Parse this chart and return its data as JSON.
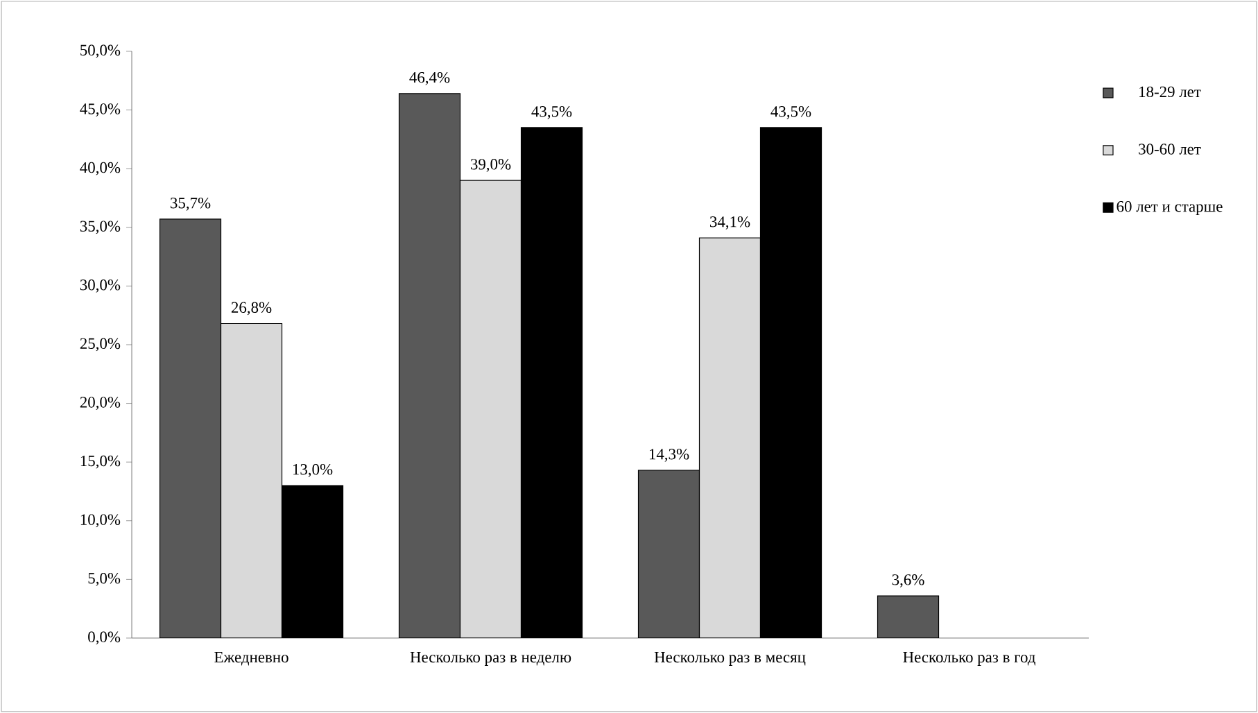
{
  "chart_data": {
    "type": "bar",
    "categories": [
      "Ежедневно",
      "Несколько раз в неделю",
      "Несколько раз в месяц",
      "Несколько раз в год"
    ],
    "series": [
      {
        "name": "18-29 лет",
        "color": "#595959",
        "values": [
          35.7,
          46.4,
          14.3,
          3.6
        ],
        "value_labels": [
          "35,7%",
          "46,4%",
          "14,3%",
          "3,6%"
        ]
      },
      {
        "name": "30-60 лет",
        "color": "#d9d9d9",
        "values": [
          26.8,
          39.0,
          34.1,
          null
        ],
        "value_labels": [
          "26,8%",
          "39,0%",
          "34,1%",
          null
        ]
      },
      {
        "name": "60 лет и старше",
        "color": "#000000",
        "values": [
          13.0,
          43.5,
          43.5,
          null
        ],
        "value_labels": [
          "13,0%",
          "43,5%",
          "43,5%",
          null
        ]
      }
    ],
    "ylim": [
      0,
      50
    ],
    "yticks": [
      {
        "value": 0,
        "label": "0,0%"
      },
      {
        "value": 5,
        "label": "5,0%"
      },
      {
        "value": 10,
        "label": "10,0%"
      },
      {
        "value": 15,
        "label": "15,0%"
      },
      {
        "value": 20,
        "label": "20,0%"
      },
      {
        "value": 25,
        "label": "25,0%"
      },
      {
        "value": 30,
        "label": "30,0%"
      },
      {
        "value": 35,
        "label": "35,0%"
      },
      {
        "value": 40,
        "label": "40,0%"
      },
      {
        "value": 45,
        "label": "45,0%"
      },
      {
        "value": 50,
        "label": "50,0%"
      }
    ],
    "grid": false,
    "legend": "right"
  }
}
